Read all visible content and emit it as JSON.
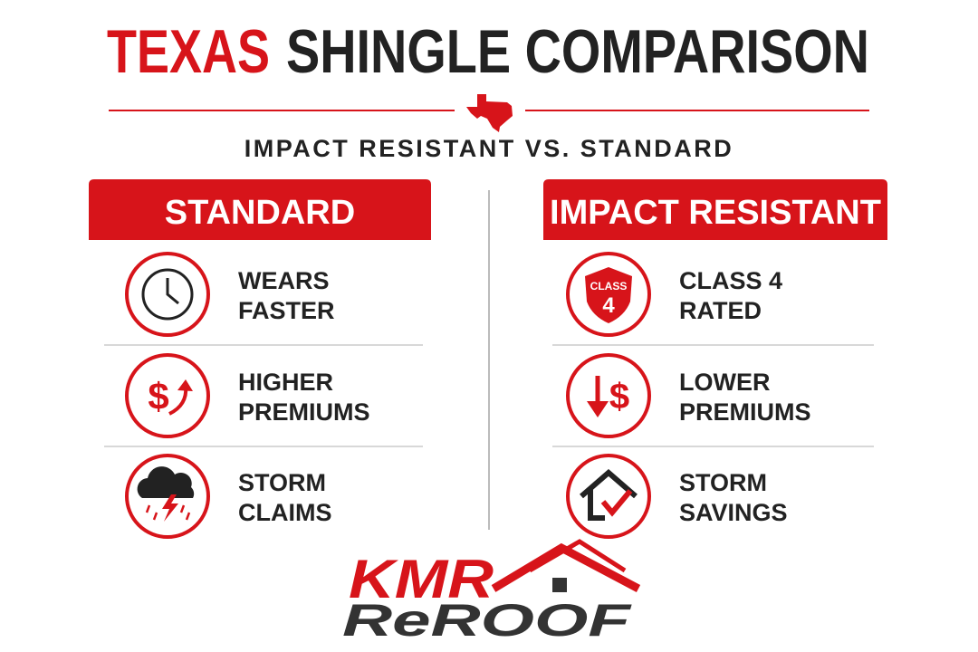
{
  "header": {
    "title_red": "TEXAS",
    "title_dark": "SHINGLE COMPARISON",
    "subtitle": "IMPACT RESISTANT VS. STANDARD"
  },
  "columns": [
    {
      "heading": "STANDARD",
      "items": [
        {
          "lines": [
            "WEARS",
            "FASTER"
          ]
        },
        {
          "lines": [
            "HIGHER",
            "PREMIUMS"
          ],
          "icon_text": [
            "$"
          ]
        },
        {
          "lines": [
            "STORM",
            "CLAIMS"
          ]
        }
      ]
    },
    {
      "heading": "IMPACT RESISTANT",
      "items": [
        {
          "lines": [
            "CLASS 4",
            "RATED"
          ],
          "icon_text": [
            "CLASS",
            "4"
          ]
        },
        {
          "lines": [
            "LOWER",
            "PREMIUMS"
          ],
          "icon_text": [
            "$"
          ]
        },
        {
          "lines": [
            "STORM",
            "SAVINGS"
          ]
        }
      ]
    }
  ],
  "logo": {
    "line1": "KMR",
    "line2": "ReROOF"
  }
}
